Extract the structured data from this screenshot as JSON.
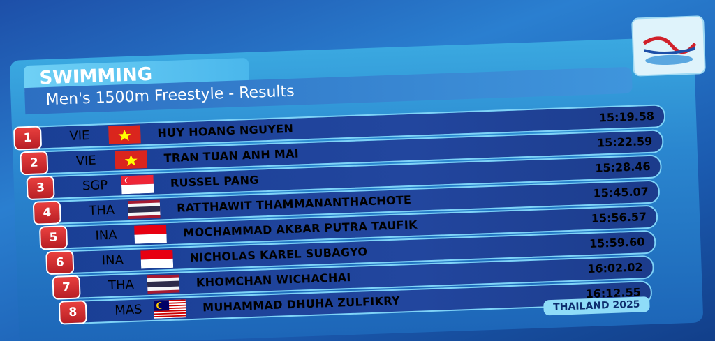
{
  "header": {
    "sport": "SWIMMING",
    "event": "Men's 1500m Freestyle - Results"
  },
  "rows": [
    {
      "rank": "1",
      "country": "VIE",
      "name": "HUY HOANG NGUYEN",
      "time": "15:19.58"
    },
    {
      "rank": "2",
      "country": "VIE",
      "name": "TRAN TUAN ANH MAI",
      "time": "15:22.59"
    },
    {
      "rank": "3",
      "country": "SGP",
      "name": "RUSSEL PANG",
      "time": "15:28.46"
    },
    {
      "rank": "4",
      "country": "THA",
      "name": "RATTHAWIT THAMMANANTHACHOTE",
      "time": "15:45.07"
    },
    {
      "rank": "5",
      "country": "INA",
      "name": "MOCHAMMAD AKBAR PUTRA TAUFIK",
      "time": "15:56.57"
    },
    {
      "rank": "6",
      "country": "INA",
      "name": "NICHOLAS KAREL SUBAGYO",
      "time": "15:59.60"
    },
    {
      "rank": "7",
      "country": "THA",
      "name": "KHOMCHAN WICHACHAI",
      "time": "16:02.02"
    },
    {
      "rank": "8",
      "country": "MAS",
      "name": "MUHAMMAD DHUHA ZULFIKRY",
      "time": "16:12.55"
    }
  ],
  "footer": "THAILAND 2025"
}
